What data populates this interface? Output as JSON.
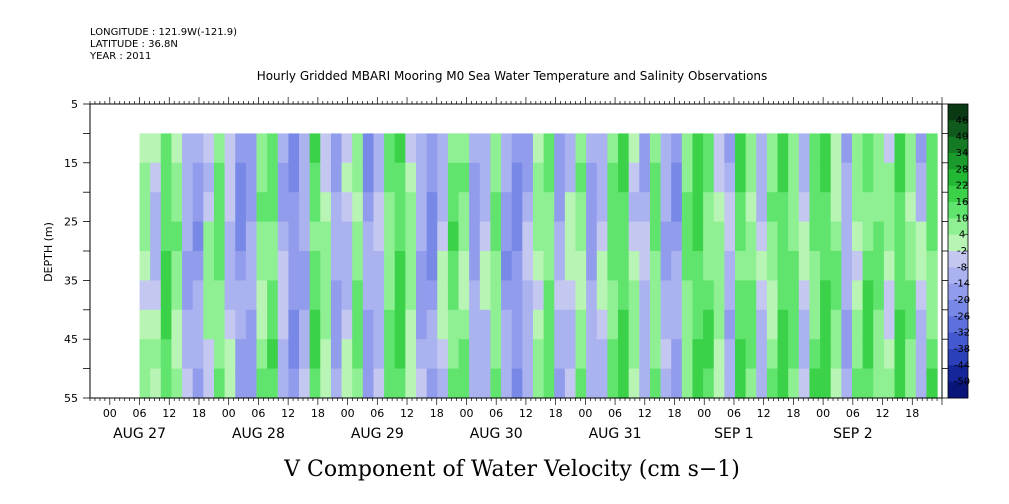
{
  "header": {
    "longitude": "LONGITUDE : 121.9W(-121.9)",
    "latitude": "LATITUDE : 36.8N",
    "year": "YEAR : 2011"
  },
  "chart_data": {
    "type": "heatmap",
    "title": "Hourly Gridded MBARI Mooring M0 Sea Water Temperature and Salinity Observations",
    "xlabel": "V Component of Water Velocity (cm s−1)",
    "ylabel": "DEPTH (m)",
    "y_axis": {
      "range": [
        5,
        55
      ],
      "inverted": true,
      "ticks": [
        "5",
        "15",
        "25",
        "35",
        "45",
        "55"
      ]
    },
    "x_axis": {
      "start": "2011-08-26 20:00",
      "end": "2011-09-03 00:00",
      "hour_labels": [
        "00",
        "06",
        "12",
        "18",
        "00",
        "06",
        "12",
        "18",
        "00",
        "06",
        "12",
        "18",
        "00",
        "06",
        "12",
        "18",
        "00",
        "06",
        "12",
        "18",
        "00",
        "06",
        "12",
        "18",
        "00",
        "06",
        "12",
        "18"
      ],
      "day_labels": [
        "AUG 27",
        "AUG 28",
        "AUG 29",
        "AUG 30",
        "AUG 31",
        "SEP  1",
        "SEP  2"
      ]
    },
    "data_extent": {
      "time_start": "2011-08-27 06:00",
      "time_end": "2011-09-02 23:00",
      "depth_top_m": 10,
      "depth_bottom_m": 55
    },
    "colorbar": {
      "levels": [
        "46",
        "40",
        "34",
        "28",
        "22",
        "16",
        "10",
        "4",
        "-2",
        "-8",
        "-14",
        "-20",
        "-26",
        "-32",
        "-38",
        "-44",
        "-50"
      ],
      "colors": [
        "#0a3a14",
        "#0f5a1c",
        "#157a24",
        "#1b9a2c",
        "#22b834",
        "#3bd24a",
        "#60e46e",
        "#8ef092",
        "#b8f4b4",
        "#c4c8f0",
        "#aab2f0",
        "#929cec",
        "#7888e6",
        "#5e70de",
        "#4459d0",
        "#2b3fb8",
        "#15269a",
        "#0a157a"
      ]
    },
    "column_pattern": [
      0.2,
      -0.1,
      0.8,
      0.3,
      -0.4,
      -0.6,
      0.1,
      0.5,
      -0.2,
      -0.7,
      -0.5,
      0.3,
      0.6,
      -0.3,
      -0.8,
      -0.4,
      0.7,
      0.2,
      -0.5,
      -0.2,
      0.4,
      -0.6,
      -0.3,
      0.5,
      0.9,
      0.2,
      -0.4,
      -0.7,
      -0.1,
      0.6,
      0.3,
      -0.5,
      -0.2,
      0.4,
      -0.6,
      -0.8,
      -0.3,
      0.2,
      0.5,
      -0.4,
      -0.1,
      0.3,
      -0.5,
      -0.2,
      0.6,
      0.8,
      0.1,
      -0.3,
      0.4,
      -0.4,
      -0.6,
      0.5,
      0.9,
      0.6,
      0.2,
      -0.3,
      0.7,
      0.4,
      -0.2,
      0.3,
      0.8,
      0.5,
      -0.1,
      0.6,
      0.9,
      0.3,
      -0.4,
      0.2,
      0.7,
      0.5,
      0.1,
      0.8,
      0.4,
      -0.2,
      0.6
    ]
  }
}
